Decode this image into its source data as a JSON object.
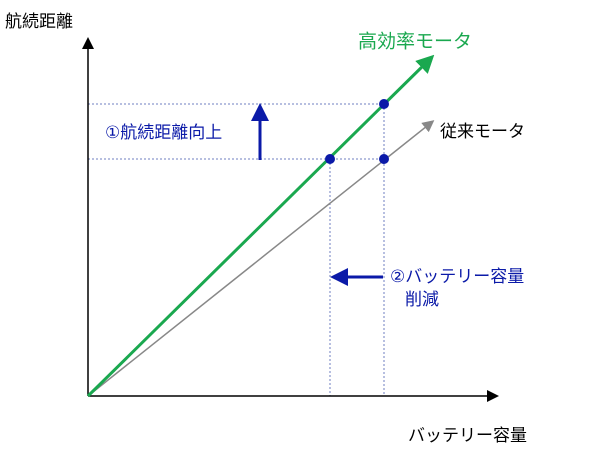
{
  "axes": {
    "y_label": "航続距離",
    "x_label": "バッテリー容量"
  },
  "lines": [
    {
      "label": "高効率モータ"
    },
    {
      "label": "従来モータ"
    }
  ],
  "annotations": [
    {
      "label": "①航続距離向上"
    },
    {
      "lines": [
        "②バッテリー容量",
        "削減"
      ]
    }
  ]
}
